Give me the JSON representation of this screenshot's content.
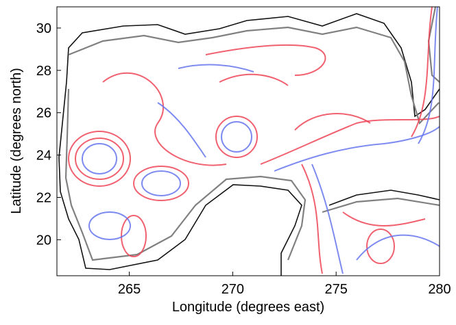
{
  "chart_data": {
    "type": "map",
    "xlabel": "Longitude (degrees east)",
    "ylabel": "Latitude (degrees north)",
    "xlim": [
      261.5,
      280
    ],
    "xticks": [
      265,
      270,
      275,
      280
    ],
    "ylim": [
      18.3,
      31
    ],
    "yticks": [
      20,
      22,
      24,
      26,
      28,
      30
    ]
  }
}
